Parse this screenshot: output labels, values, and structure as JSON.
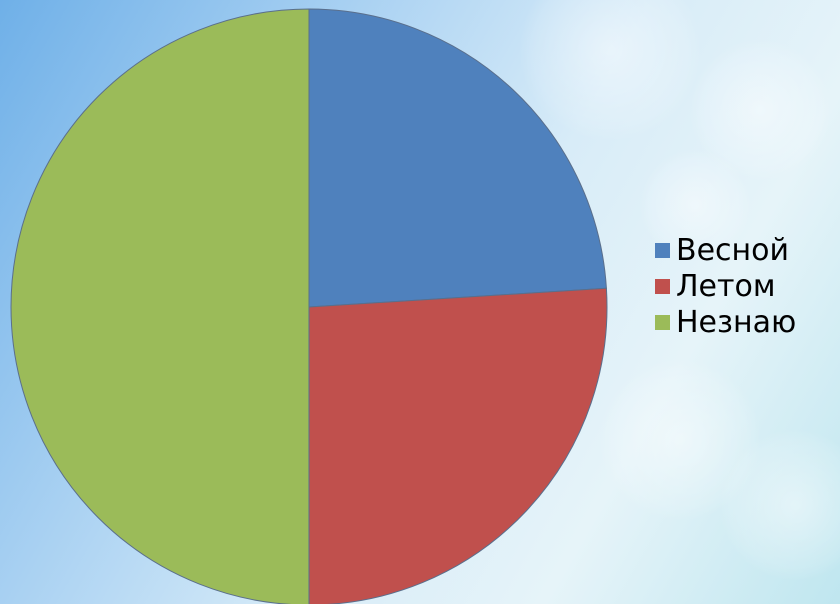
{
  "chart_data": {
    "type": "pie",
    "categories": [
      "Весной",
      "Летом",
      "Незнаю"
    ],
    "values": [
      24,
      26,
      50
    ],
    "colors": [
      "#4f81bd",
      "#c0504d",
      "#9bbb59"
    ],
    "start_angle_deg": 0,
    "direction": "clockwise",
    "legend_position": "right"
  }
}
